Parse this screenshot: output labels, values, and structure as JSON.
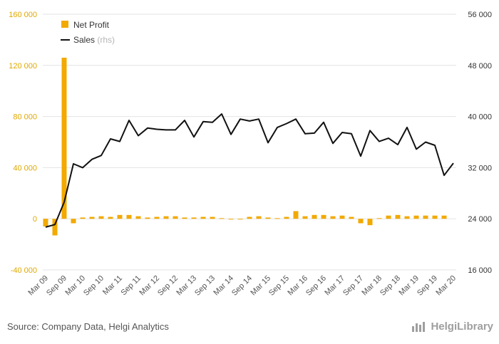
{
  "chart_data": {
    "type": "bar+line",
    "categories": [
      "Mar 09",
      "Jun 09",
      "Sep 09",
      "Dec 09",
      "Mar 10",
      "Jun 10",
      "Sep 10",
      "Dec 10",
      "Mar 11",
      "Jun 11",
      "Sep 11",
      "Dec 11",
      "Mar 12",
      "Jun 12",
      "Sep 12",
      "Dec 12",
      "Mar 13",
      "Jun 13",
      "Sep 13",
      "Dec 13",
      "Mar 14",
      "Jun 14",
      "Sep 14",
      "Dec 14",
      "Mar 15",
      "Jun 15",
      "Sep 15",
      "Dec 15",
      "Mar 16",
      "Jun 16",
      "Sep 16",
      "Dec 16",
      "Mar 17",
      "Jun 17",
      "Sep 17",
      "Dec 17",
      "Mar 18",
      "Jun 18",
      "Sep 18",
      "Dec 18",
      "Mar 19",
      "Jun 19",
      "Sep 19",
      "Dec 19",
      "Mar 20"
    ],
    "x_tick_labels": [
      "Mar 09",
      "Sep 09",
      "Mar 10",
      "Sep 10",
      "Mar 11",
      "Sep 11",
      "Mar 12",
      "Sep 12",
      "Mar 13",
      "Sep 13",
      "Mar 14",
      "Sep 14",
      "Mar 15",
      "Sep 15",
      "Mar 16",
      "Sep 16",
      "Mar 17",
      "Sep 17",
      "Mar 18",
      "Sep 18",
      "Mar 19",
      "Sep 19",
      "Mar 20"
    ],
    "series": [
      {
        "name": "Net Profit",
        "axis": "left",
        "type": "bar",
        "color": "#f2a900",
        "values": [
          -6000,
          -13000,
          126000,
          -3500,
          1000,
          1500,
          2000,
          1500,
          3000,
          3000,
          2000,
          1000,
          1500,
          2000,
          2000,
          1000,
          1000,
          1500,
          1500,
          500,
          -500,
          -500,
          1500,
          2000,
          1000,
          500,
          1500,
          6000,
          2000,
          3000,
          3000,
          2000,
          2500,
          1500,
          -3500,
          -5000,
          500,
          2500,
          3000,
          2000,
          2500,
          2500,
          2500,
          2500,
          0
        ]
      },
      {
        "name": "Sales",
        "name_suffix": "(rhs)",
        "axis": "right",
        "type": "line",
        "color": "#111111",
        "values": [
          22700,
          23100,
          26600,
          32600,
          32000,
          33300,
          33900,
          36500,
          36100,
          39400,
          37000,
          38200,
          38000,
          37900,
          37900,
          39400,
          36800,
          39200,
          39100,
          40400,
          37200,
          39600,
          39300,
          39600,
          35900,
          38300,
          38900,
          39600,
          37300,
          37400,
          39100,
          35800,
          37500,
          37300,
          33800,
          37800,
          36100,
          36600,
          35600,
          38300,
          34900,
          36000,
          35500,
          30800,
          32700
        ]
      }
    ],
    "left_axis": {
      "min": -40000,
      "max": 160000,
      "ticks": [
        "-40 000",
        "0",
        "40 000",
        "80 000",
        "120 000",
        "160 000"
      ]
    },
    "right_axis": {
      "min": 16000,
      "max": 56000,
      "ticks": [
        "16 000",
        "24 000",
        "32 000",
        "40 000",
        "48 000",
        "56 000"
      ]
    },
    "grid": "horizontal",
    "legend": "top-left"
  },
  "footer": {
    "source": "Source: Company Data, Helgi Analytics",
    "brand": "HelgiLibrary"
  }
}
